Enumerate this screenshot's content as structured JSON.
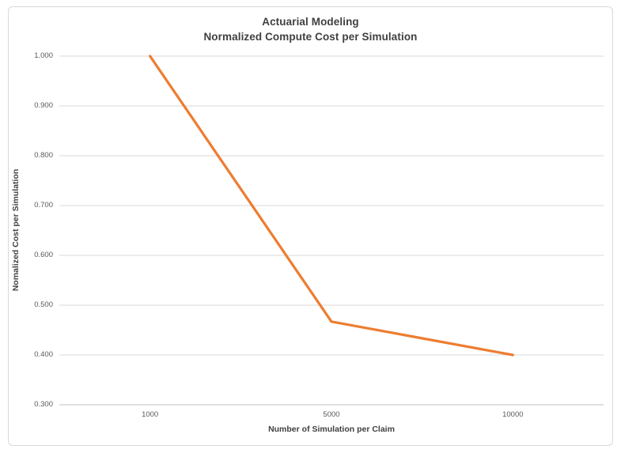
{
  "window": {
    "background": "#ffffff",
    "frame_border_color": "#d9d9d9"
  },
  "chart_data": {
    "type": "line",
    "title_line1": "Actuarial Modeling",
    "title_line2": "Normalized Compute Cost per Simulation",
    "xlabel": "Number of Simulation per Claim",
    "ylabel": "Nomalized Cost per Simulation",
    "categories": [
      "1000",
      "5000",
      "10000"
    ],
    "series": [
      {
        "color": "#ED7D31",
        "values": [
          1.0,
          0.467,
          0.4
        ]
      }
    ],
    "ylim": [
      0.3,
      1.0
    ],
    "ytick_step": 0.1,
    "ytick_decimals": 3,
    "grid": "horizontal",
    "legend": "none",
    "colors": {
      "gridline": "#d9d9d9",
      "axis_line": "#bfbfbf",
      "tick_text": "#595959",
      "title_text": "#404040"
    }
  }
}
